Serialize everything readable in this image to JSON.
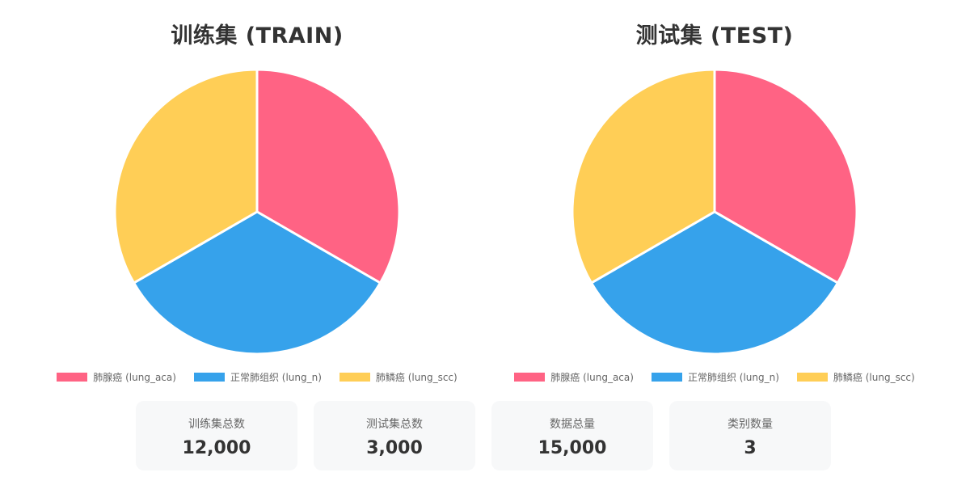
{
  "chart_data": [
    {
      "type": "pie",
      "title": "训练集 (TRAIN)",
      "categories": [
        "肺腺癌 (lung_aca)",
        "正常肺组织 (lung_n)",
        "肺鳞癌 (lung_scc)"
      ],
      "values": [
        4000,
        4000,
        4000
      ],
      "colors": [
        "#FF6384",
        "#36A2EB",
        "#FFCE56"
      ],
      "legend": "bottom"
    },
    {
      "type": "pie",
      "title": "测试集 (TEST)",
      "categories": [
        "肺腺癌 (lung_aca)",
        "正常肺组织 (lung_n)",
        "肺鳞癌 (lung_scc)"
      ],
      "values": [
        1000,
        1000,
        1000
      ],
      "colors": [
        "#FF6384",
        "#36A2EB",
        "#FFCE56"
      ],
      "legend": "bottom"
    }
  ],
  "stats": [
    {
      "label": "训练集总数",
      "value": "12,000"
    },
    {
      "label": "测试集总数",
      "value": "3,000"
    },
    {
      "label": "数据总量",
      "value": "15,000"
    },
    {
      "label": "类别数量",
      "value": "3"
    }
  ]
}
